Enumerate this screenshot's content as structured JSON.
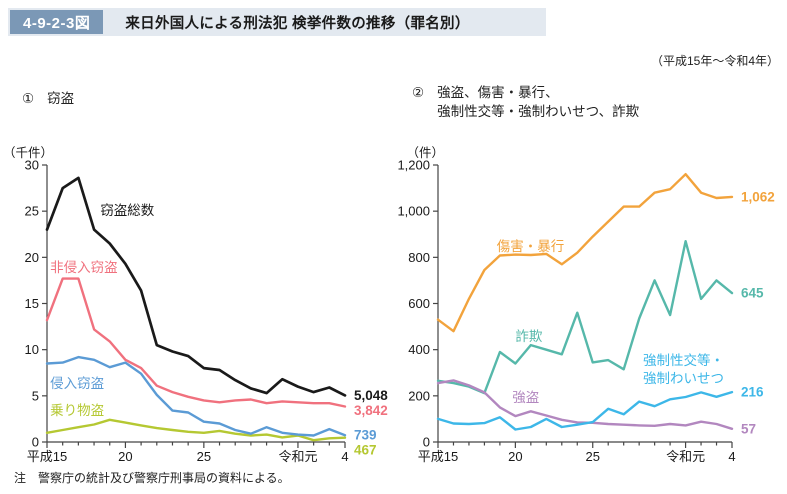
{
  "header": {
    "figure_no": "4-9-2-3図",
    "title": "来日外国人による刑法犯 検挙件数の推移（罪名別）",
    "period": "（平成15年～令和4年）"
  },
  "note": "注　警察庁の統計及び警察庁刑事局の資料による。",
  "chart_data": [
    {
      "type": "line",
      "title_prefix": "①",
      "title_lines": [
        "窃盗"
      ],
      "unit_label": "（千件）",
      "ylim": [
        0,
        30
      ],
      "ytick_step": 5,
      "ytick_labels": [
        "0",
        "5",
        "10",
        "15",
        "20",
        "25",
        "30"
      ],
      "years": [
        "平成15",
        "16",
        "17",
        "18",
        "19",
        "20",
        "21",
        "22",
        "23",
        "24",
        "25",
        "26",
        "27",
        "28",
        "29",
        "30",
        "令和元",
        "2",
        "3",
        "4"
      ],
      "xticks_shown": [
        0,
        5,
        10,
        16,
        19
      ],
      "grid": "off",
      "legend": "inline-annotations",
      "series": [
        {
          "name": "乗り物盗",
          "color": "#b5c832",
          "end_label": "467",
          "label_lines": [
            "乗り物盗"
          ],
          "label_xi": 0.2,
          "label_value": 2.9,
          "values": [
            1.0,
            1.3,
            1.6,
            1.9,
            2.4,
            2.1,
            1.8,
            1.5,
            1.3,
            1.1,
            1.0,
            1.2,
            0.9,
            0.7,
            0.8,
            0.5,
            0.7,
            0.2,
            0.4,
            0.467
          ]
        },
        {
          "name": "侵入窃盗",
          "color": "#5b9bd5",
          "end_label": "739",
          "label_lines": [
            "侵入窃盗"
          ],
          "label_xi": 0.2,
          "label_value": 5.85,
          "values": [
            8.5,
            8.6,
            9.2,
            8.9,
            8.1,
            8.6,
            7.4,
            5.1,
            3.4,
            3.2,
            2.2,
            2.0,
            1.3,
            0.9,
            1.6,
            1.0,
            0.8,
            0.7,
            1.4,
            0.739
          ]
        },
        {
          "name": "非侵入窃盗",
          "color": "#f0717e",
          "end_label": "3,842",
          "label_lines": [
            "非侵入窃盗"
          ],
          "label_xi": 0.2,
          "label_value": 18.4,
          "values": [
            13.2,
            17.7,
            17.7,
            12.2,
            10.9,
            8.9,
            8.0,
            6.1,
            5.4,
            4.9,
            4.5,
            4.3,
            4.5,
            4.6,
            4.2,
            4.4,
            4.3,
            4.2,
            4.2,
            3.842
          ]
        },
        {
          "name": "窃盗総数",
          "color": "#1a1a1a",
          "end_label": "5,048",
          "width": 2.7,
          "label_lines": [
            "窃盗総数"
          ],
          "label_xi": 3.4,
          "label_value": 24.6,
          "values": [
            23.0,
            27.5,
            28.6,
            23.0,
            21.5,
            19.3,
            16.4,
            10.5,
            9.8,
            9.3,
            8.0,
            7.8,
            6.7,
            5.8,
            5.3,
            6.8,
            6.0,
            5.4,
            5.9,
            5.048
          ]
        }
      ]
    },
    {
      "type": "line",
      "title_prefix": "②",
      "title_lines": [
        "強盗、傷害・暴行、",
        "強制性交等・強制わいせつ、詐欺"
      ],
      "unit_label": "（件）",
      "ylim": [
        0,
        1200
      ],
      "ytick_step": 200,
      "ytick_labels": [
        "0",
        "200",
        "400",
        "600",
        "800",
        "1,000",
        "1,200"
      ],
      "years": [
        "平成15",
        "16",
        "17",
        "18",
        "19",
        "20",
        "21",
        "22",
        "23",
        "24",
        "25",
        "26",
        "27",
        "28",
        "29",
        "30",
        "令和元",
        "2",
        "3",
        "4"
      ],
      "xticks_shown": [
        0,
        5,
        10,
        16,
        19
      ],
      "grid": "off",
      "legend": "inline-annotations",
      "series": [
        {
          "name": "傷害・暴行",
          "color": "#f2a33c",
          "end_label": "1,062",
          "label_lines": [
            "傷害・暴行"
          ],
          "label_xi": 3.8,
          "label_value": 827,
          "values": [
            530,
            480,
            620,
            745,
            808,
            812,
            810,
            815,
            770,
            820,
            890,
            955,
            1020,
            1020,
            1080,
            1095,
            1160,
            1080,
            1057,
            1062
          ]
        },
        {
          "name": "詐欺",
          "color": "#56b8aa",
          "end_label": "645",
          "label_lines": [
            "詐欺"
          ],
          "label_xi": 5.0,
          "label_value": 437,
          "values": [
            265,
            255,
            240,
            212,
            390,
            340,
            420,
            400,
            380,
            560,
            345,
            355,
            315,
            535,
            700,
            550,
            870,
            620,
            700,
            645
          ]
        },
        {
          "name": "強盗",
          "color": "#b287bf",
          "end_label": "57",
          "label_lines": [
            "強盗"
          ],
          "label_xi": 4.8,
          "label_value": 173,
          "values": [
            255,
            267,
            245,
            215,
            150,
            112,
            133,
            115,
            96,
            85,
            83,
            78,
            75,
            72,
            70,
            78,
            72,
            88,
            78,
            57
          ]
        },
        {
          "name": "強制性交等・強制わいせつ",
          "color": "#3db7e8",
          "end_label": "216",
          "label_lines": [
            "強制性交等・",
            "強制わいせつ"
          ],
          "label_xi": 13.25,
          "label_value": 334,
          "values": [
            100,
            80,
            78,
            82,
            107,
            54,
            65,
            100,
            65,
            75,
            86,
            144,
            120,
            175,
            155,
            185,
            195,
            215,
            196,
            216
          ]
        }
      ]
    }
  ]
}
